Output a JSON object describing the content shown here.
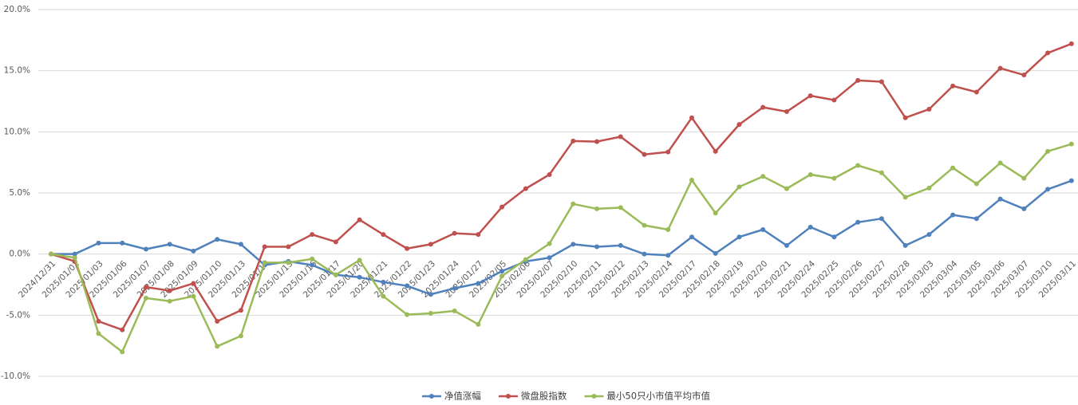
{
  "chart_data": {
    "type": "line",
    "categories": [
      "2024/12/31",
      "2025/01/02",
      "2025/01/03",
      "2025/01/06",
      "2025/01/07",
      "2025/01/08",
      "2025/01/09",
      "2025/01/10",
      "2025/01/13",
      "2025/01/14",
      "2025/01/15",
      "2025/01/16",
      "2025/01/17",
      "2025/01/20",
      "2025/01/21",
      "2025/01/22",
      "2025/01/23",
      "2025/01/24",
      "2025/01/27",
      "2025/02/05",
      "2025/02/06",
      "2025/02/07",
      "2025/02/10",
      "2025/02/11",
      "2025/02/12",
      "2025/02/13",
      "2025/02/14",
      "2025/02/17",
      "2025/02/18",
      "2025/02/19",
      "2025/02/20",
      "2025/02/21",
      "2025/02/24",
      "2025/02/25",
      "2025/02/26",
      "2025/02/27",
      "2025/02/28",
      "2025/03/03",
      "2025/03/04",
      "2025/03/05",
      "2025/03/06",
      "2025/03/07",
      "2025/03/10",
      "2025/03/11"
    ],
    "series": [
      {
        "name": "净值涨幅",
        "color": "#4f81bd",
        "values": [
          0,
          0,
          0.9,
          0.9,
          0.4,
          0.8,
          0.25,
          1.2,
          0.8,
          -0.9,
          -0.6,
          -0.9,
          -1.7,
          -1.9,
          -2.3,
          -2.6,
          -3.3,
          -2.8,
          -2.4,
          -1.4,
          -0.6,
          -0.3,
          0.8,
          0.6,
          0.7,
          0,
          -0.1,
          1.4,
          0.05,
          1.4,
          2.0,
          0.7,
          2.2,
          1.4,
          2.6,
          2.9,
          0.7,
          1.6,
          3.2,
          2.9,
          4.5,
          3.7,
          5.3,
          6.0
        ]
      },
      {
        "name": "微盘股指数",
        "color": "#c0504d",
        "values": [
          0,
          -0.6,
          -5.5,
          -6.2,
          -2.7,
          -3.0,
          -2.4,
          -5.5,
          -4.6,
          0.6,
          0.6,
          1.6,
          1.0,
          2.8,
          1.6,
          0.45,
          0.8,
          1.7,
          1.6,
          3.85,
          5.35,
          6.5,
          9.25,
          9.2,
          9.6,
          8.15,
          8.35,
          11.15,
          8.4,
          10.6,
          12.0,
          11.65,
          12.95,
          12.6,
          14.2,
          14.1,
          11.15,
          11.85,
          13.75,
          13.25,
          15.2,
          14.65,
          16.45,
          17.2
        ]
      },
      {
        "name": "最小50只小市值平均市值",
        "color": "#9bbb59",
        "values": [
          0,
          -0.3,
          -6.5,
          -8.0,
          -3.6,
          -3.85,
          -3.45,
          -7.55,
          -6.7,
          -0.7,
          -0.7,
          -0.4,
          -1.7,
          -0.5,
          -3.45,
          -4.95,
          -4.85,
          -4.65,
          -5.75,
          -1.8,
          -0.45,
          0.85,
          4.1,
          3.7,
          3.8,
          2.35,
          2.0,
          6.05,
          3.35,
          5.5,
          6.35,
          5.35,
          6.5,
          6.2,
          7.25,
          6.65,
          4.65,
          5.4,
          7.05,
          5.75,
          7.45,
          6.2,
          8.4,
          9.0
        ]
      }
    ],
    "ylim": [
      -10,
      20
    ],
    "yticks": [
      {
        "value": -10,
        "label": "-10.0%"
      },
      {
        "value": -5,
        "label": "-5.0%"
      },
      {
        "value": 0,
        "label": "0.0%"
      },
      {
        "value": 5,
        "label": "5.0%"
      },
      {
        "value": 10,
        "label": "10.0%"
      },
      {
        "value": 15,
        "label": "15.0%"
      },
      {
        "value": 20,
        "label": "20.0%"
      }
    ],
    "grid": true,
    "legend": "bottom"
  }
}
